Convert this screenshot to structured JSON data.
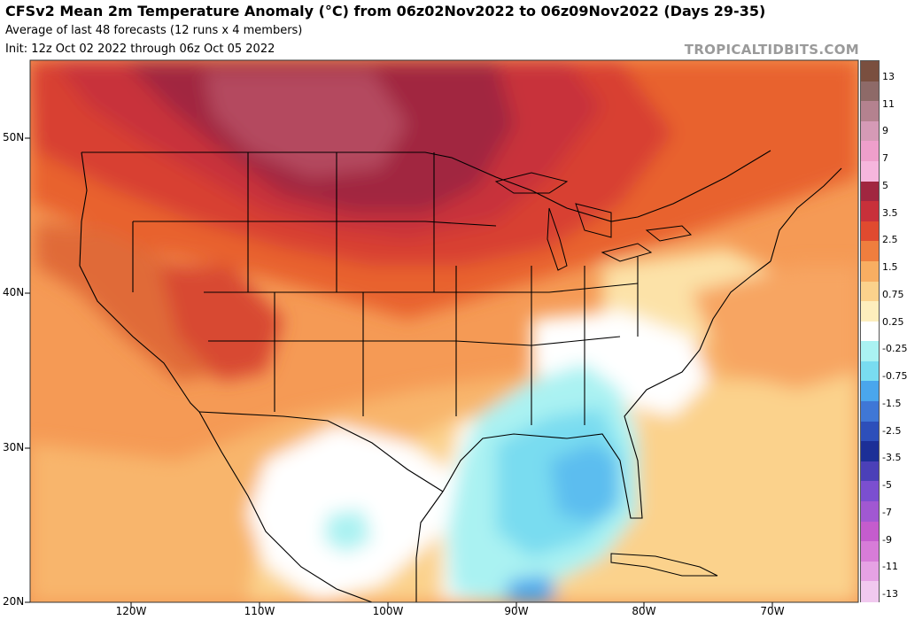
{
  "header": {
    "title": "CFSv2 Mean 2m Temperature Anomaly (°C) from 06z02Nov2022 to 06z09Nov2022 (Days 29-35)",
    "subtitle1": "Average of last 48 forecasts (12 runs x 4 members)",
    "subtitle2": "Init: 12z Oct 02 2022 through 06z Oct 05 2022",
    "watermark": "TROPICALTIDBITS.COM"
  },
  "map": {
    "latitude_labels": [
      "50N",
      "40N",
      "30N",
      "20N"
    ],
    "longitude_labels": [
      "120W",
      "110W",
      "100W",
      "90W",
      "80W",
      "70W"
    ]
  },
  "colorbar": {
    "labels": [
      "13",
      "11",
      "9",
      "7",
      "5",
      "3.5",
      "2.5",
      "1.5",
      "0.75",
      "0.25",
      "-0.25",
      "-0.75",
      "-1.5",
      "-2.5",
      "-3.5",
      "-5",
      "-7",
      "-9",
      "-11",
      "-13"
    ],
    "colors": [
      "#7a4f3f",
      "#8e6a68",
      "#b4828f",
      "#d59ab6",
      "#ee9fcb",
      "#f6b6dd",
      "#a12640",
      "#c8303a",
      "#e04a2f",
      "#ef7e3e",
      "#f8ae62",
      "#fbd28c",
      "#fdeebd",
      "#ffffff",
      "#aaf2f2",
      "#79dcf0",
      "#4aa6ec",
      "#3f77d6",
      "#2d4fba",
      "#1c2f97",
      "#4b40b8",
      "#7b4fd0",
      "#a158d2",
      "#c45ccd",
      "#d77cd8",
      "#e6a2e4",
      "#f1c9ef"
    ]
  }
}
